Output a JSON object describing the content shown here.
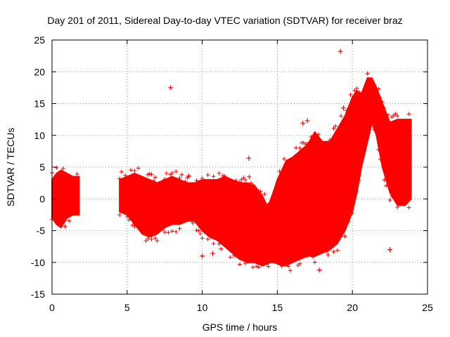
{
  "chart_data": {
    "type": "scatter",
    "title": "Day 201 of 2011, Sidereal Day-to-day VTEC variation (SDTVAR) for receiver braz",
    "xlabel": "GPS time / hours",
    "ylabel": "SDTVAR / TECUs",
    "xlim": [
      0,
      25
    ],
    "ylim": [
      -15,
      25
    ],
    "xticks": [
      0,
      5,
      10,
      15,
      20,
      25
    ],
    "yticks": [
      -15,
      -10,
      -5,
      0,
      5,
      10,
      15,
      20,
      25
    ],
    "grid": true,
    "marker": "+",
    "series": [
      {
        "name": "SDTVAR",
        "color": "#ff0000",
        "band": {
          "x": [
            0.0,
            0.3,
            0.6,
            1.0,
            1.4,
            1.8,
            4.5,
            5.0,
            5.5,
            6.0,
            6.5,
            7.0,
            7.5,
            8.0,
            8.5,
            9.0,
            9.5,
            10.0,
            10.5,
            11.0,
            11.5,
            12.0,
            12.5,
            13.0,
            13.5,
            14.0,
            14.3,
            14.5,
            14.8,
            15.0,
            15.3,
            15.6,
            16.0,
            16.5,
            17.0,
            17.5,
            18.0,
            18.5,
            19.0,
            19.5,
            20.0,
            20.3,
            20.6,
            21.0,
            21.3,
            21.6,
            22.0,
            22.5,
            23.0,
            23.5,
            23.9
          ],
          "upper": [
            3.0,
            4.0,
            4.5,
            4.0,
            3.5,
            3.5,
            3.0,
            3.5,
            4.0,
            3.5,
            3.0,
            2.5,
            3.0,
            3.5,
            3.0,
            2.5,
            2.5,
            3.0,
            3.0,
            3.0,
            3.5,
            3.0,
            2.5,
            2.5,
            2.0,
            0.5,
            -1.0,
            -0.5,
            1.5,
            3.0,
            4.5,
            6.0,
            6.5,
            7.5,
            8.5,
            10.5,
            9.0,
            9.0,
            11.0,
            13.0,
            16.0,
            17.0,
            16.5,
            19.0,
            19.0,
            17.5,
            15.0,
            12.0,
            12.5,
            12.5,
            12.5
          ],
          "lower": [
            -3.0,
            -4.0,
            -4.5,
            -3.0,
            -2.5,
            -2.5,
            -2.0,
            -2.5,
            -4.0,
            -5.5,
            -6.0,
            -5.5,
            -4.5,
            -4.0,
            -4.0,
            -3.5,
            -3.5,
            -5.0,
            -6.0,
            -6.5,
            -7.5,
            -8.5,
            -9.5,
            -10.0,
            -10.0,
            -10.5,
            -10.3,
            -10.0,
            -10.0,
            -10.2,
            -10.5,
            -10.5,
            -10.0,
            -9.5,
            -9.0,
            -9.0,
            -8.5,
            -8.0,
            -7.0,
            -5.0,
            -2.0,
            1.0,
            5.0,
            9.0,
            12.0,
            10.0,
            5.0,
            1.0,
            -1.0,
            -1.0,
            0.0
          ]
        },
        "outliers": [
          {
            "x": 7.9,
            "y": 17.5
          },
          {
            "x": 19.2,
            "y": 23.2
          },
          {
            "x": 19.4,
            "y": 14.3
          },
          {
            "x": 22.5,
            "y": -8.0
          },
          {
            "x": 17.0,
            "y": 12.3
          },
          {
            "x": 16.7,
            "y": 11.9
          },
          {
            "x": 12.3,
            "y": -7.4
          },
          {
            "x": 10.7,
            "y": -8.6
          },
          {
            "x": 10.0,
            "y": -9.0
          },
          {
            "x": 17.8,
            "y": -11.2
          },
          {
            "x": 13.1,
            "y": 6.4
          },
          {
            "x": 9.1,
            "y": 3.6
          },
          {
            "x": 23.6,
            "y": 4.5
          }
        ]
      }
    ]
  }
}
